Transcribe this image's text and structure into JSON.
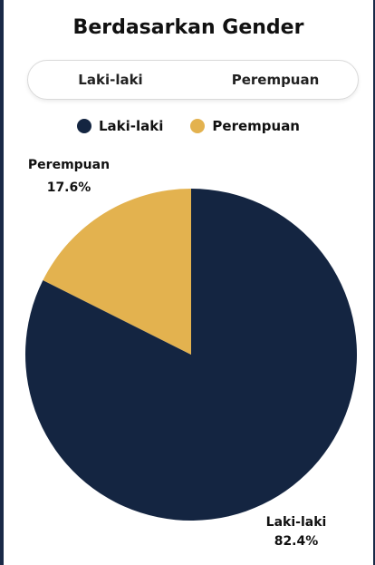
{
  "title": "Berdasarkan Gender",
  "toggle": {
    "items": [
      "Laki-laki",
      "Perempuan"
    ]
  },
  "chart_data": {
    "type": "pie",
    "title": "",
    "slices": [
      {
        "name": "Laki-laki",
        "value": 82.4,
        "label": "82.4%",
        "color": "#142541"
      },
      {
        "name": "Perempuan",
        "value": 17.6,
        "label": "17.6%",
        "color": "#e3b24f"
      }
    ],
    "legend": "top"
  }
}
